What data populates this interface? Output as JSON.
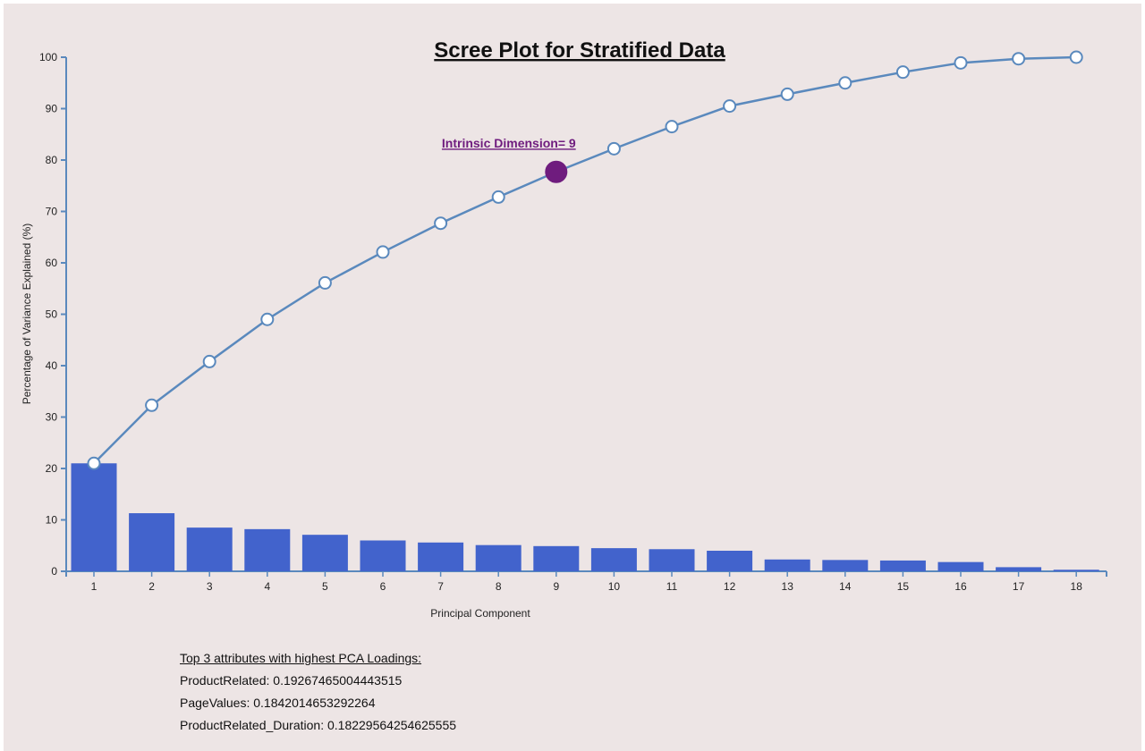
{
  "chart_data": {
    "type": "bar",
    "title": "Scree Plot for Stratified Data",
    "xlabel": "Principal Component",
    "ylabel": "Percentage of Variance Explained (%)",
    "ylim": [
      0,
      100
    ],
    "yticks": [
      0,
      10,
      20,
      30,
      40,
      50,
      60,
      70,
      80,
      90,
      100
    ],
    "categories": [
      "1",
      "2",
      "3",
      "4",
      "5",
      "6",
      "7",
      "8",
      "9",
      "10",
      "11",
      "12",
      "13",
      "14",
      "15",
      "16",
      "17",
      "18"
    ],
    "series": [
      {
        "type": "bar",
        "values": [
          21.0,
          11.3,
          8.5,
          8.2,
          7.1,
          6.0,
          5.6,
          5.1,
          4.9,
          4.5,
          4.3,
          4.0,
          2.3,
          2.2,
          2.1,
          1.8,
          0.8,
          0.3
        ]
      },
      {
        "type": "line",
        "values": [
          21.0,
          32.3,
          40.8,
          49.0,
          56.1,
          62.1,
          67.7,
          72.8,
          77.7,
          82.2,
          86.5,
          90.5,
          92.8,
          95.0,
          97.1,
          98.9,
          99.7,
          100.0
        ]
      }
    ],
    "annotation": {
      "label": "Intrinsic Dimension= 9",
      "component": 9,
      "color": "#6f1c7e"
    },
    "colors": {
      "bar": "#4263cc",
      "line": "#5a89bd",
      "axis": "#5a89bd",
      "highlight": "#6f1c7e",
      "background": "#ede5e5"
    },
    "grid": false
  },
  "loadings": {
    "heading": "Top 3 attributes with highest PCA Loadings:",
    "items": [
      "ProductRelated: 0.19267465004443515",
      "PageValues: 0.1842014653292264",
      "ProductRelated_Duration: 0.18229564254625555"
    ]
  }
}
